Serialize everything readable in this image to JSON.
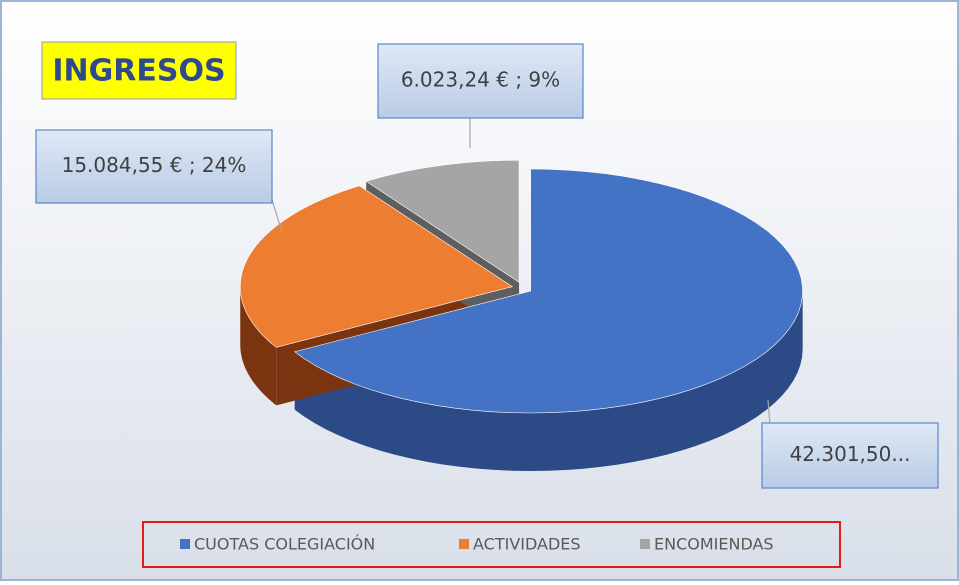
{
  "chart_data": {
    "type": "pie",
    "title": "INGRESOS",
    "categories": [
      "CUOTAS COLEGIACIÓN",
      "ACTIVIDADES",
      "ENCOMIENDAS"
    ],
    "values": [
      42301.5,
      15084.55,
      6023.24
    ],
    "value_labels": [
      "42.301,50...",
      "15.084,55 € ; 24%",
      "6.023,24 € ; 9%"
    ],
    "colors": [
      "#4472c4",
      "#ed7d31",
      "#a5a5a5"
    ],
    "legend": "bottom"
  }
}
